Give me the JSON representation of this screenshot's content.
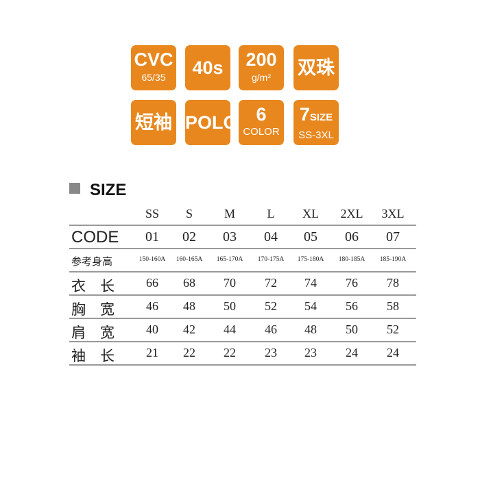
{
  "badges": [
    {
      "big": "CVC",
      "small": "65/35"
    },
    {
      "big": "40s",
      "small": ""
    },
    {
      "big": "200",
      "small": "g/m²"
    },
    {
      "big": "双珠",
      "small": ""
    },
    {
      "big": "短袖",
      "small": ""
    },
    {
      "big": "POLO",
      "small": ""
    },
    {
      "big": "6",
      "small": "COLOR"
    },
    {
      "big": "7",
      "big_suffix": "SIZE",
      "small": "SS-3XL"
    }
  ],
  "accent_color": "#e8871e",
  "section_title": "SIZE",
  "table": {
    "columns": [
      "SS",
      "S",
      "M",
      "L",
      "XL",
      "2XL",
      "3XL"
    ],
    "rows": [
      {
        "label": "CODE",
        "values": [
          "01",
          "02",
          "03",
          "04",
          "05",
          "06",
          "07"
        ]
      },
      {
        "label": "参考身高",
        "values": [
          "150-160A",
          "160-165A",
          "165-170A",
          "170-175A",
          "175-180A",
          "180-185A",
          "185-190A"
        ]
      },
      {
        "label": "衣　长",
        "values": [
          "66",
          "68",
          "70",
          "72",
          "74",
          "76",
          "78"
        ]
      },
      {
        "label": "胸　宽",
        "values": [
          "46",
          "48",
          "50",
          "52",
          "54",
          "56",
          "58"
        ]
      },
      {
        "label": "肩　宽",
        "values": [
          "40",
          "42",
          "44",
          "46",
          "48",
          "50",
          "52"
        ]
      },
      {
        "label": "袖　长",
        "values": [
          "21",
          "22",
          "22",
          "23",
          "23",
          "24",
          "24"
        ]
      }
    ]
  }
}
